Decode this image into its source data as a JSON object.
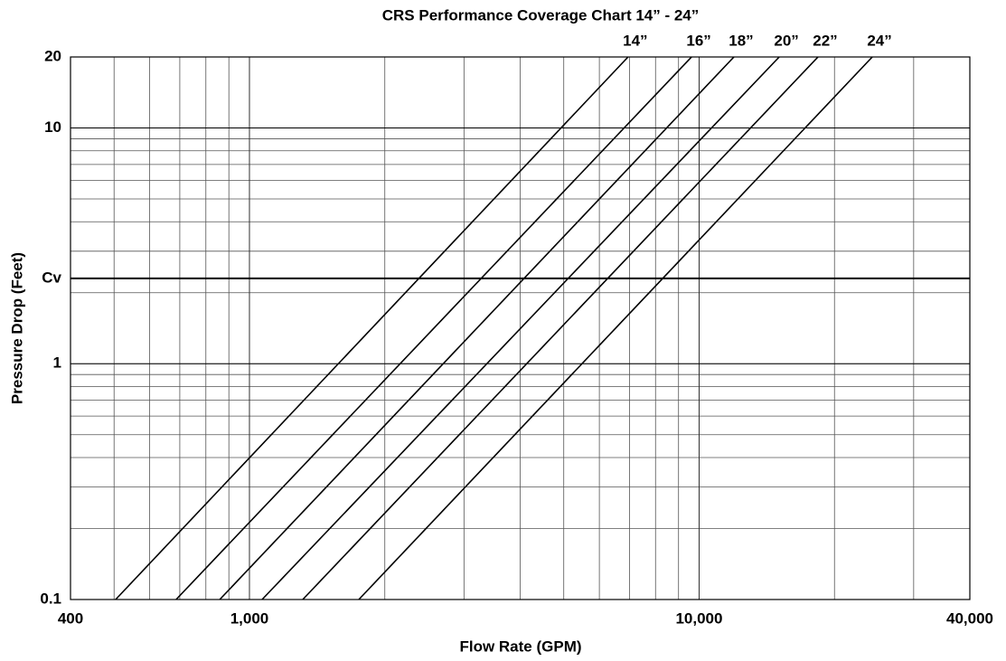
{
  "chart_data": {
    "type": "line",
    "title": "CRS Performance Coverage Chart 14” - 24”",
    "xlabel": "Flow Rate (GPM)",
    "ylabel": "Pressure Drop (Feet)",
    "xscale": "log",
    "yscale": "log",
    "grid": true,
    "color": "#000000",
    "xlim": [
      400,
      40000
    ],
    "xticks": [
      400,
      {
        "value": 1000,
        "label": "1,000"
      },
      {
        "value": 10000,
        "label": "10,000"
      },
      {
        "value": 40000,
        "label": "40,000"
      }
    ],
    "ylim": [
      0.1,
      20
    ],
    "yticks": [
      0.1,
      1,
      {
        "value": 2.3,
        "label": "Cv"
      },
      10,
      20
    ],
    "series": [
      {
        "name": "14”",
        "color": "#000000",
        "x": [
          504,
          6950
        ],
        "values": [
          0.1,
          20
        ]
      },
      {
        "name": "16”",
        "color": "#000000",
        "x": [
          687,
          9620
        ],
        "values": [
          0.1,
          20
        ]
      },
      {
        "name": "18”",
        "color": "#000000",
        "x": [
          859,
          11950
        ],
        "values": [
          0.1,
          20
        ]
      },
      {
        "name": "20”",
        "color": "#000000",
        "x": [
          1067,
          15070
        ],
        "values": [
          0.1,
          20
        ]
      },
      {
        "name": "22”",
        "color": "#000000",
        "x": [
          1314,
          18380
        ],
        "values": [
          0.1,
          20
        ]
      },
      {
        "name": "24”",
        "color": "#000000",
        "x": [
          1751,
          24270
        ],
        "values": [
          0.1,
          20
        ]
      }
    ]
  }
}
